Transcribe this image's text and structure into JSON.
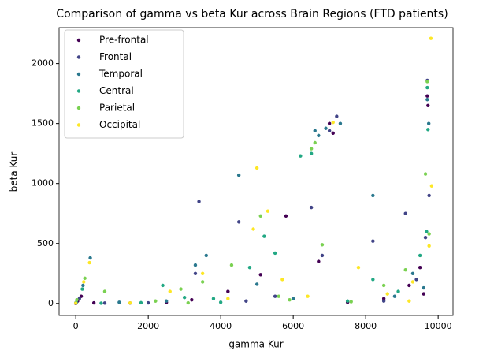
{
  "chart_data": {
    "type": "scatter",
    "title": "Comparison of gamma vs beta Kur across Brain Regions (FTD patients)",
    "x_label": "gamma Kur",
    "y_label": "beta Kur",
    "xlim": [
      -460,
      10410
    ],
    "ylim": [
      -100,
      2300
    ],
    "xticks": [
      0,
      2000,
      4000,
      6000,
      8000,
      10000
    ],
    "yticks": [
      0,
      500,
      1000,
      1500,
      2000
    ],
    "legend": "upper left",
    "series": [
      {
        "name": "Pre-frontal",
        "color": "#440154",
        "x": [
          0,
          50,
          150,
          500,
          1500,
          2500,
          3200,
          4200,
          5100,
          5800,
          7000,
          7100,
          7500,
          8500,
          9200,
          9500,
          9700,
          9720,
          9600,
          6700
        ],
        "values": [
          0,
          20,
          60,
          5,
          3,
          8,
          30,
          100,
          240,
          730,
          1500,
          1420,
          10,
          40,
          150,
          300,
          1730,
          1650,
          80,
          350
        ]
      },
      {
        "name": "Frontal",
        "color": "#414487",
        "x": [
          20,
          100,
          800,
          2000,
          3400,
          3300,
          4500,
          5500,
          6500,
          6800,
          7200,
          7000,
          8200,
          8500,
          9100,
          9700,
          9750,
          9650,
          9400,
          4700
        ],
        "values": [
          10,
          40,
          3,
          5,
          850,
          250,
          680,
          60,
          800,
          400,
          1560,
          1440,
          520,
          20,
          750,
          1860,
          900,
          550,
          200,
          20
        ]
      },
      {
        "name": "Temporal",
        "color": "#2a788e",
        "x": [
          0,
          200,
          400,
          1200,
          2500,
          3300,
          3600,
          4500,
          5000,
          6000,
          6600,
          6700,
          6900,
          7300,
          8200,
          8800,
          9300,
          9700,
          9740,
          9600
        ],
        "values": [
          5,
          150,
          380,
          10,
          20,
          320,
          400,
          1070,
          160,
          40,
          1440,
          1400,
          1460,
          1500,
          900,
          60,
          250,
          1700,
          1500,
          130
        ]
      },
      {
        "name": "Central",
        "color": "#22a884",
        "x": [
          10,
          180,
          700,
          2400,
          3000,
          3800,
          4800,
          5200,
          5500,
          6200,
          6500,
          7500,
          8200,
          8900,
          9500,
          9700,
          9720,
          9680,
          4000,
          1800
        ],
        "values": [
          8,
          120,
          2,
          150,
          50,
          40,
          300,
          560,
          420,
          1230,
          1250,
          20,
          200,
          100,
          400,
          1800,
          1450,
          600,
          10,
          6
        ]
      },
      {
        "name": "Parietal",
        "color": "#7ad151",
        "x": [
          30,
          250,
          800,
          2200,
          2900,
          3500,
          4300,
          5100,
          5600,
          6500,
          6600,
          6800,
          7600,
          8500,
          9100,
          9650,
          9700,
          9750,
          3100,
          5900
        ],
        "values": [
          30,
          210,
          100,
          20,
          120,
          180,
          320,
          730,
          60,
          1290,
          1340,
          490,
          15,
          150,
          280,
          1080,
          1850,
          580,
          5,
          30
        ]
      },
      {
        "name": "Occipital",
        "color": "#fde725",
        "x": [
          0,
          220,
          380,
          1500,
          2600,
          3500,
          4900,
          5000,
          5300,
          5700,
          6400,
          7100,
          7800,
          8600,
          9300,
          9800,
          9820,
          9750,
          9200,
          4200
        ],
        "values": [
          2,
          180,
          340,
          4,
          100,
          250,
          620,
          1130,
          770,
          200,
          60,
          1510,
          300,
          80,
          180,
          2210,
          980,
          480,
          20,
          40
        ]
      }
    ]
  }
}
